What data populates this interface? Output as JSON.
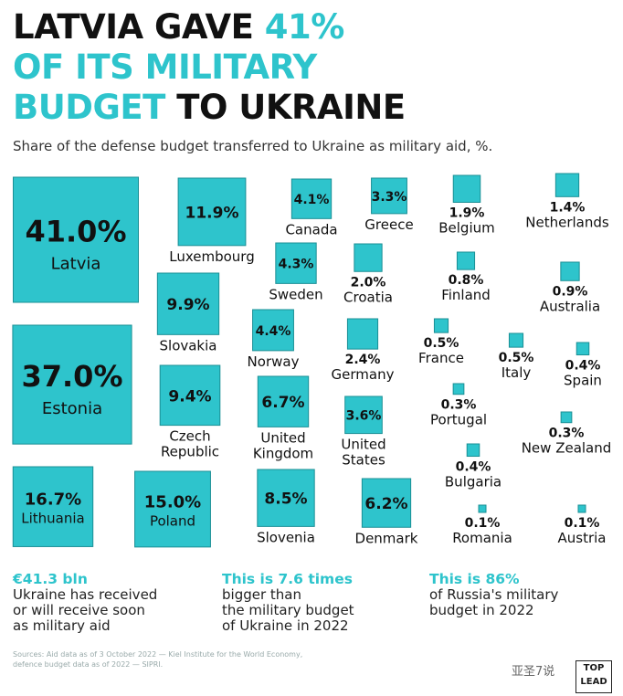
{
  "title": {
    "line1_a": "LATVIA GAVE ",
    "line1_b": "41%",
    "line2": "OF ITS MILITARY",
    "line3_a": "BUDGET",
    "line3_b": " TO UKRAINE"
  },
  "subtitle": "Share of the defense budget transferred to Ukraine as military aid, %.",
  "colors": {
    "accent": "#2ec4cc",
    "square_border": "#1a8f95",
    "text": "#111111"
  },
  "chart_data": {
    "type": "proportional-squares",
    "unit": "%",
    "title": "LATVIA GAVE 41% OF ITS MILITARY BUDGET TO UKRAINE",
    "subtitle": "Share of the defense budget transferred to Ukraine as military aid, %.",
    "items": [
      {
        "country": "Latvia",
        "value": 41.0,
        "label": "41.0%"
      },
      {
        "country": "Estonia",
        "value": 37.0,
        "label": "37.0%"
      },
      {
        "country": "Lithuania",
        "value": 16.7,
        "label": "16.7%"
      },
      {
        "country": "Poland",
        "value": 15.0,
        "label": "15.0%"
      },
      {
        "country": "Luxembourg",
        "value": 11.9,
        "label": "11.9%"
      },
      {
        "country": "Slovakia",
        "value": 9.9,
        "label": "9.9%"
      },
      {
        "country": "Czech Republic",
        "value": 9.4,
        "label": "9.4%"
      },
      {
        "country": "Slovenia",
        "value": 8.5,
        "label": "8.5%"
      },
      {
        "country": "United Kingdom",
        "value": 6.7,
        "label": "6.7%"
      },
      {
        "country": "Denmark",
        "value": 6.2,
        "label": "6.2%"
      },
      {
        "country": "Norway",
        "value": 4.4,
        "label": "4.4%"
      },
      {
        "country": "Sweden",
        "value": 4.3,
        "label": "4.3%"
      },
      {
        "country": "Canada",
        "value": 4.1,
        "label": "4.1%"
      },
      {
        "country": "United States",
        "value": 3.6,
        "label": "3.6%"
      },
      {
        "country": "Greece",
        "value": 3.3,
        "label": "3.3%"
      },
      {
        "country": "Germany",
        "value": 2.4,
        "label": "2.4%"
      },
      {
        "country": "Croatia",
        "value": 2.0,
        "label": "2.0%"
      },
      {
        "country": "Belgium",
        "value": 1.9,
        "label": "1.9%"
      },
      {
        "country": "Netherlands",
        "value": 1.4,
        "label": "1.4%"
      },
      {
        "country": "Australia",
        "value": 0.9,
        "label": "0.9%"
      },
      {
        "country": "Finland",
        "value": 0.8,
        "label": "0.8%"
      },
      {
        "country": "France",
        "value": 0.5,
        "label": "0.5%"
      },
      {
        "country": "Italy",
        "value": 0.5,
        "label": "0.5%"
      },
      {
        "country": "Spain",
        "value": 0.4,
        "label": "0.4%"
      },
      {
        "country": "Bulgaria",
        "value": 0.4,
        "label": "0.4%"
      },
      {
        "country": "Portugal",
        "value": 0.3,
        "label": "0.3%"
      },
      {
        "country": "New Zealand",
        "value": 0.3,
        "label": "0.3%"
      },
      {
        "country": "Romania",
        "value": 0.1,
        "label": "0.1%"
      },
      {
        "country": "Austria",
        "value": 0.1,
        "label": "0.1%"
      }
    ]
  },
  "footer": {
    "stat1_big": "€41.3 bln",
    "stat1_text": [
      "Ukraine has received",
      "or will receive soon",
      "as military aid"
    ],
    "stat2_big": "This is 7.6 times",
    "stat2_text": [
      "bigger than",
      "the military budget",
      "of Ukraine in 2022"
    ],
    "stat3_big": "This is 86%",
    "stat3_text": [
      "of Russia's military",
      "budget in 2022"
    ]
  },
  "sources": [
    "Sources: Aid data as of 3 October 2022 — Kiel Institute for the World Economy,",
    "defence budget data as of 2022 — SIPRI."
  ],
  "watermark": "亚圣7说",
  "logo": {
    "line1": "TOP",
    "line2": "LEAD"
  }
}
